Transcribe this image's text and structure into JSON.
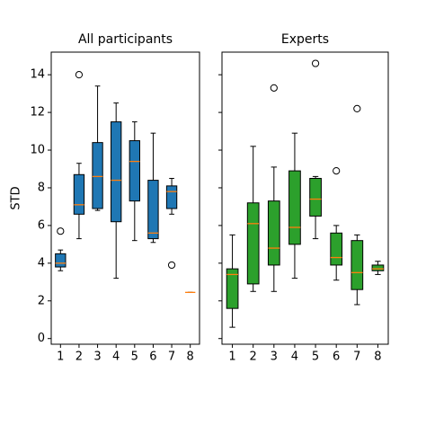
{
  "chart_data": [
    {
      "type": "box",
      "title": "All participants",
      "ylabel": "STD",
      "color": "#1f77b4",
      "median_color": "#ff7f0e",
      "categories": [
        "1",
        "2",
        "3",
        "4",
        "5",
        "6",
        "7",
        "8"
      ],
      "boxes": [
        {
          "whislo": 3.6,
          "q1": 3.8,
          "med": 4.0,
          "q3": 4.5,
          "whishi": 4.7,
          "fliers": [
            5.7
          ]
        },
        {
          "whislo": 5.3,
          "q1": 6.6,
          "med": 7.1,
          "q3": 8.7,
          "whishi": 9.3,
          "fliers": [
            14.0
          ]
        },
        {
          "whislo": 6.8,
          "q1": 6.9,
          "med": 8.6,
          "q3": 10.4,
          "whishi": 13.4,
          "fliers": []
        },
        {
          "whislo": 3.2,
          "q1": 6.2,
          "med": 8.4,
          "q3": 11.5,
          "whishi": 12.5,
          "fliers": []
        },
        {
          "whislo": 5.2,
          "q1": 7.3,
          "med": 9.4,
          "q3": 10.5,
          "whishi": 11.5,
          "fliers": []
        },
        {
          "whislo": 5.1,
          "q1": 5.3,
          "med": 5.6,
          "q3": 8.4,
          "whishi": 10.9,
          "fliers": []
        },
        {
          "whislo": 6.6,
          "q1": 6.9,
          "med": 7.8,
          "q3": 8.1,
          "whishi": 8.5,
          "fliers": [
            3.9
          ]
        },
        {
          "whislo": 2.45,
          "q1": 2.45,
          "med": 2.45,
          "q3": 2.45,
          "whishi": 2.45,
          "fliers": []
        }
      ],
      "xlim": [
        0.5,
        8.5
      ],
      "ylim": [
        -0.3,
        15.2
      ],
      "yticks": [
        0,
        2,
        4,
        6,
        8,
        10,
        12,
        14
      ]
    },
    {
      "type": "box",
      "title": "Experts",
      "color": "#2ca02c",
      "median_color": "#ff7f0e",
      "categories": [
        "1",
        "2",
        "3",
        "4",
        "5",
        "6",
        "7",
        "8"
      ],
      "boxes": [
        {
          "whislo": 0.6,
          "q1": 1.6,
          "med": 3.4,
          "q3": 3.7,
          "whishi": 5.5,
          "fliers": []
        },
        {
          "whislo": 2.5,
          "q1": 2.9,
          "med": 6.1,
          "q3": 7.2,
          "whishi": 10.2,
          "fliers": []
        },
        {
          "whislo": 2.5,
          "q1": 3.9,
          "med": 4.8,
          "q3": 7.3,
          "whishi": 9.1,
          "fliers": [
            13.3
          ]
        },
        {
          "whislo": 3.2,
          "q1": 5.0,
          "med": 5.9,
          "q3": 8.9,
          "whishi": 10.9,
          "fliers": []
        },
        {
          "whislo": 5.3,
          "q1": 6.5,
          "med": 7.4,
          "q3": 8.5,
          "whishi": 8.6,
          "fliers": [
            14.6
          ]
        },
        {
          "whislo": 3.1,
          "q1": 3.9,
          "med": 4.3,
          "q3": 5.6,
          "whishi": 6.0,
          "fliers": [
            8.9
          ]
        },
        {
          "whislo": 1.8,
          "q1": 2.6,
          "med": 3.5,
          "q3": 5.2,
          "whishi": 5.5,
          "fliers": [
            12.2
          ]
        },
        {
          "whislo": 3.4,
          "q1": 3.6,
          "med": 3.7,
          "q3": 3.9,
          "whishi": 4.1,
          "fliers": []
        }
      ],
      "xlim": [
        0.5,
        8.5
      ],
      "ylim": [
        -0.3,
        15.2
      ],
      "yticks": [
        0,
        2,
        4,
        6,
        8,
        10,
        12,
        14
      ]
    }
  ]
}
